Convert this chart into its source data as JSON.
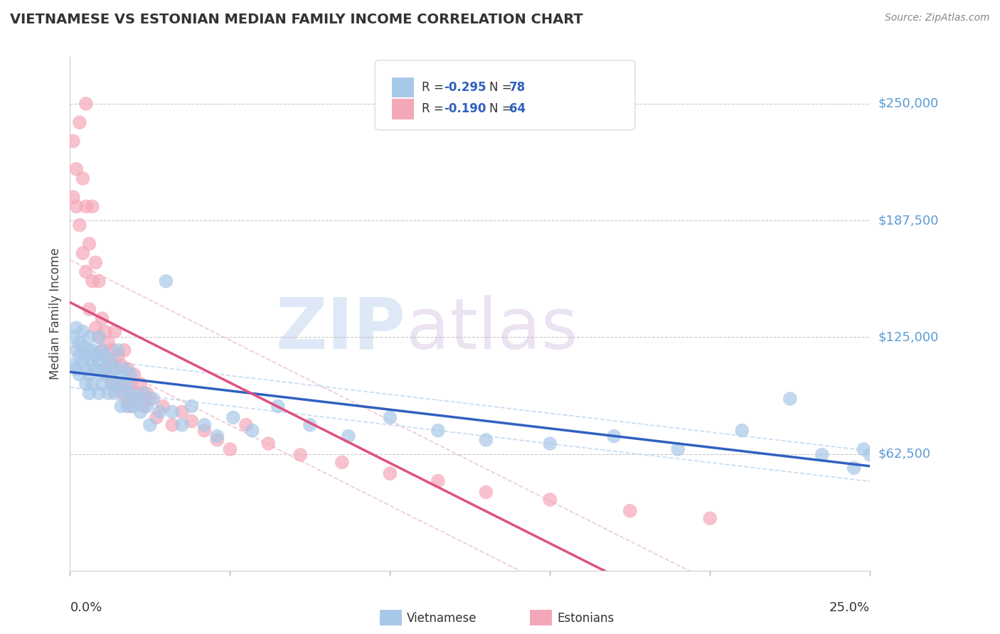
{
  "title": "VIETNAMESE VS ESTONIAN MEDIAN FAMILY INCOME CORRELATION CHART",
  "source": "Source: ZipAtlas.com",
  "ylabel": "Median Family Income",
  "xlim": [
    0.0,
    0.25
  ],
  "ylim": [
    0,
    275000
  ],
  "yticks": [
    62500,
    125000,
    187500,
    250000
  ],
  "ytick_labels": [
    "$62,500",
    "$125,000",
    "$187,500",
    "$250,000"
  ],
  "title_color": "#333333",
  "ytick_color": "#5b9bd5",
  "background_color": "#ffffff",
  "grid_color": "#bbbbbb",
  "watermark_zip": "ZIP",
  "watermark_atlas": "atlas",
  "watermark_color": "#d0dff0",
  "watermark_color2": "#d8c8e8",
  "viet_color": "#a8c8e8",
  "esto_color": "#f4a7b9",
  "viet_line_color": "#3060c0",
  "esto_line_color": "#e05080",
  "conf_color_viet": "#c0d8f0",
  "conf_color_esto": "#f0c0cc",
  "viet_scatter_x": [
    0.001,
    0.001,
    0.002,
    0.002,
    0.002,
    0.003,
    0.003,
    0.003,
    0.004,
    0.004,
    0.004,
    0.005,
    0.005,
    0.005,
    0.006,
    0.006,
    0.006,
    0.006,
    0.007,
    0.007,
    0.007,
    0.008,
    0.008,
    0.009,
    0.009,
    0.009,
    0.01,
    0.01,
    0.01,
    0.011,
    0.011,
    0.012,
    0.012,
    0.013,
    0.013,
    0.014,
    0.014,
    0.015,
    0.015,
    0.016,
    0.016,
    0.017,
    0.017,
    0.018,
    0.018,
    0.019,
    0.019,
    0.02,
    0.021,
    0.022,
    0.023,
    0.024,
    0.025,
    0.026,
    0.028,
    0.03,
    0.032,
    0.035,
    0.038,
    0.042,
    0.046,
    0.051,
    0.057,
    0.065,
    0.075,
    0.087,
    0.1,
    0.115,
    0.13,
    0.15,
    0.17,
    0.19,
    0.21,
    0.225,
    0.235,
    0.245,
    0.248,
    0.25
  ],
  "viet_scatter_y": [
    110000,
    125000,
    118000,
    130000,
    108000,
    115000,
    122000,
    105000,
    120000,
    112000,
    128000,
    100000,
    115000,
    108000,
    118000,
    105000,
    95000,
    125000,
    110000,
    100000,
    118000,
    108000,
    115000,
    112000,
    95000,
    125000,
    105000,
    118000,
    100000,
    108000,
    115000,
    95000,
    105000,
    112000,
    100000,
    108000,
    95000,
    118000,
    100000,
    105000,
    88000,
    95000,
    108000,
    100000,
    88000,
    95000,
    105000,
    88000,
    92000,
    85000,
    95000,
    88000,
    78000,
    92000,
    85000,
    155000,
    85000,
    78000,
    88000,
    78000,
    72000,
    82000,
    75000,
    88000,
    78000,
    72000,
    82000,
    75000,
    70000,
    68000,
    72000,
    65000,
    75000,
    92000,
    62000,
    55000,
    65000,
    62000
  ],
  "esto_scatter_x": [
    0.001,
    0.001,
    0.002,
    0.002,
    0.003,
    0.003,
    0.004,
    0.004,
    0.005,
    0.005,
    0.005,
    0.006,
    0.006,
    0.007,
    0.007,
    0.008,
    0.008,
    0.009,
    0.009,
    0.01,
    0.01,
    0.011,
    0.011,
    0.012,
    0.012,
    0.013,
    0.013,
    0.014,
    0.014,
    0.015,
    0.015,
    0.016,
    0.016,
    0.017,
    0.017,
    0.018,
    0.018,
    0.019,
    0.019,
    0.02,
    0.02,
    0.021,
    0.022,
    0.023,
    0.024,
    0.025,
    0.027,
    0.029,
    0.032,
    0.035,
    0.038,
    0.042,
    0.046,
    0.05,
    0.055,
    0.062,
    0.072,
    0.085,
    0.1,
    0.115,
    0.13,
    0.15,
    0.175,
    0.2
  ],
  "esto_scatter_y": [
    200000,
    230000,
    215000,
    195000,
    240000,
    185000,
    210000,
    170000,
    250000,
    195000,
    160000,
    175000,
    140000,
    195000,
    155000,
    165000,
    130000,
    155000,
    125000,
    135000,
    118000,
    128000,
    108000,
    122000,
    112000,
    118000,
    100000,
    128000,
    108000,
    115000,
    100000,
    110000,
    95000,
    118000,
    100000,
    108000,
    90000,
    100000,
    88000,
    105000,
    92000,
    95000,
    100000,
    88000,
    95000,
    92000,
    82000,
    88000,
    78000,
    85000,
    80000,
    75000,
    70000,
    65000,
    78000,
    68000,
    62000,
    58000,
    52000,
    48000,
    42000,
    38000,
    32000,
    28000
  ]
}
